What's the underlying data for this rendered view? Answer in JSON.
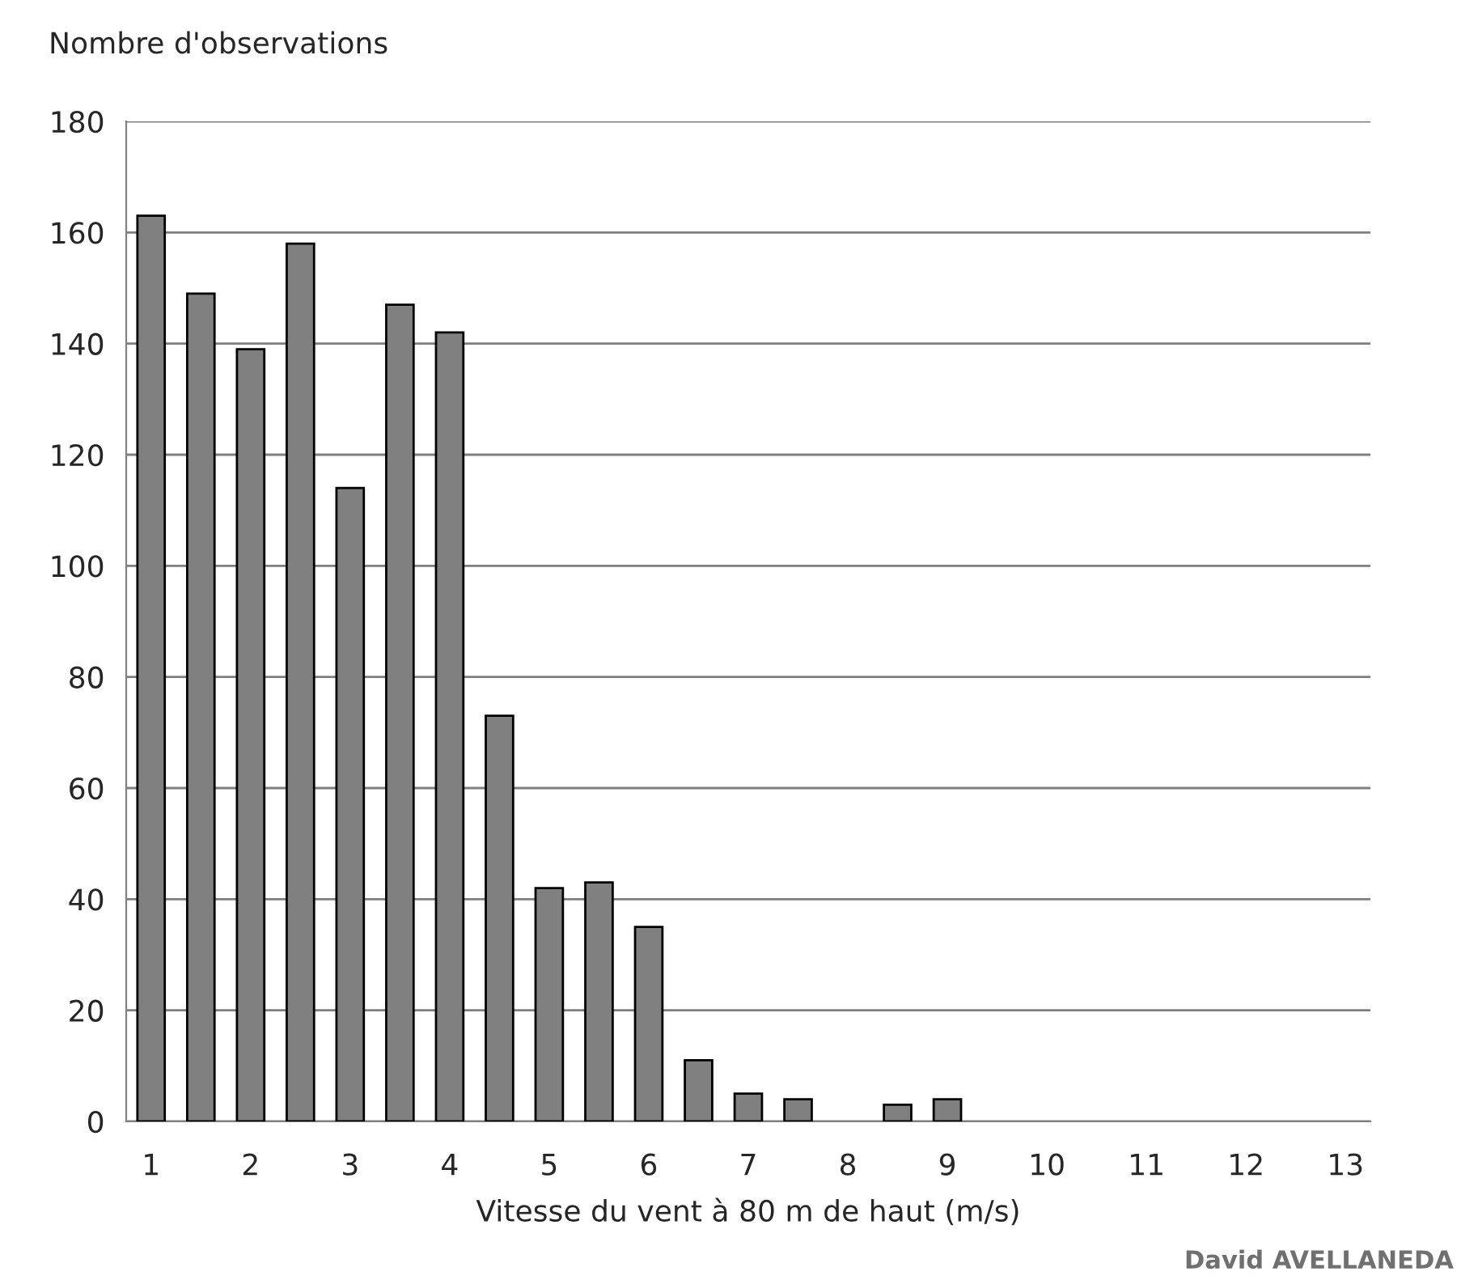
{
  "chart_data": {
    "type": "bar",
    "ylabel": "Nombre d'observations",
    "xlabel": "Vitesse du vent à 80 m de haut (m/s)",
    "categories": [
      "1",
      null,
      "2",
      null,
      "3",
      null,
      "4",
      null,
      "5",
      null,
      "6",
      null,
      "7",
      null,
      "8",
      null,
      "9",
      null,
      "10",
      null,
      "11",
      null,
      "12",
      null,
      "13"
    ],
    "values": [
      163,
      149,
      139,
      158,
      114,
      147,
      142,
      73,
      42,
      43,
      35,
      11,
      5,
      4,
      0,
      3,
      4,
      0,
      0,
      0,
      0,
      0,
      0,
      0,
      0
    ],
    "color": "#808080",
    "ylim": [
      0,
      180
    ],
    "yticks": [
      0,
      20,
      40,
      60,
      80,
      100,
      120,
      140,
      160,
      180
    ],
    "grid": "y",
    "annotations": [
      "David AVELLANEDA"
    ]
  }
}
